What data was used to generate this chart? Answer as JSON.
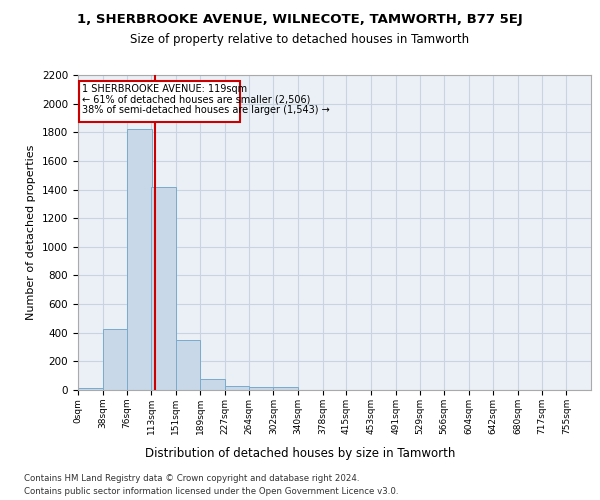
{
  "title1": "1, SHERBROOKE AVENUE, WILNECOTE, TAMWORTH, B77 5EJ",
  "title2": "Size of property relative to detached houses in Tamworth",
  "xlabel": "Distribution of detached houses by size in Tamworth",
  "ylabel": "Number of detached properties",
  "footer1": "Contains HM Land Registry data © Crown copyright and database right 2024.",
  "footer2": "Contains public sector information licensed under the Open Government Licence v3.0.",
  "annotation_line1": "1 SHERBROOKE AVENUE: 119sqm",
  "annotation_line2": "← 61% of detached houses are smaller (2,506)",
  "annotation_line3": "38% of semi-detached houses are larger (1,543) →",
  "property_size": 119,
  "bin_width": 38,
  "bin_starts": [
    0,
    38,
    76,
    113,
    151,
    189,
    227,
    264,
    302,
    340,
    378,
    415,
    453,
    491,
    529,
    566,
    604,
    642,
    680,
    717
  ],
  "bar_heights": [
    15,
    425,
    1820,
    1420,
    350,
    75,
    25,
    20,
    20,
    0,
    0,
    0,
    0,
    0,
    0,
    0,
    0,
    0,
    0,
    0
  ],
  "bar_color": "#c8d8e8",
  "bar_edge_color": "#7aabcc",
  "red_line_color": "#cc0000",
  "grid_color": "#c8d4e0",
  "background_color": "#eaf0f6",
  "tick_labels": [
    "0sqm",
    "38sqm",
    "76sqm",
    "113sqm",
    "151sqm",
    "189sqm",
    "227sqm",
    "264sqm",
    "302sqm",
    "340sqm",
    "378sqm",
    "415sqm",
    "453sqm",
    "491sqm",
    "529sqm",
    "566sqm",
    "604sqm",
    "642sqm",
    "680sqm",
    "717sqm",
    "755sqm"
  ],
  "ylim": [
    0,
    2200
  ],
  "yticks": [
    0,
    200,
    400,
    600,
    800,
    1000,
    1200,
    1400,
    1600,
    1800,
    2000,
    2200
  ],
  "xlim_max": 793
}
